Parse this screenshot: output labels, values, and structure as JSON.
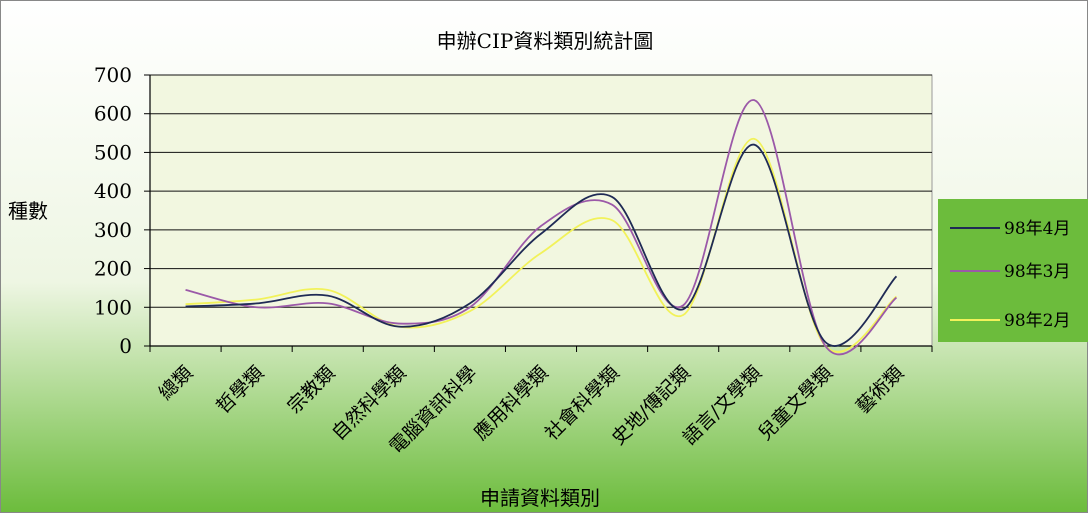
{
  "chart_data": {
    "type": "line",
    "title": "申辦CIP資料類別統計圖",
    "xlabel": "申請資料類別",
    "ylabel": "種數",
    "ylim": [
      0,
      700
    ],
    "yticks": [
      0,
      100,
      200,
      300,
      400,
      500,
      600,
      700
    ],
    "categories": [
      "總類",
      "哲學類",
      "宗教類",
      "自然科學類",
      "電腦資訊科學",
      "應用科學類",
      "社會科學類",
      "史地/傳記類",
      "語言/文學類",
      "兒童文學類",
      "藝術類"
    ],
    "series": [
      {
        "name": "98年4月",
        "color": "#1f2a55",
        "values": [
          102,
          110,
          130,
          50,
          110,
          290,
          385,
          95,
          520,
          10,
          180
        ]
      },
      {
        "name": "98年3月",
        "color": "#9b59a8",
        "values": [
          145,
          100,
          110,
          58,
          100,
          310,
          365,
          105,
          635,
          0,
          125
        ]
      },
      {
        "name": "98年2月",
        "color": "#f2f25a",
        "values": [
          108,
          120,
          145,
          50,
          90,
          240,
          325,
          80,
          535,
          0,
          128
        ]
      }
    ],
    "grid": true,
    "legend_position": "right",
    "plot_background": "#f2f7e0",
    "gradient_top": "#ffffff",
    "gradient_bottom": "#6cbc3c",
    "legend_background": "#6cbc3c"
  }
}
